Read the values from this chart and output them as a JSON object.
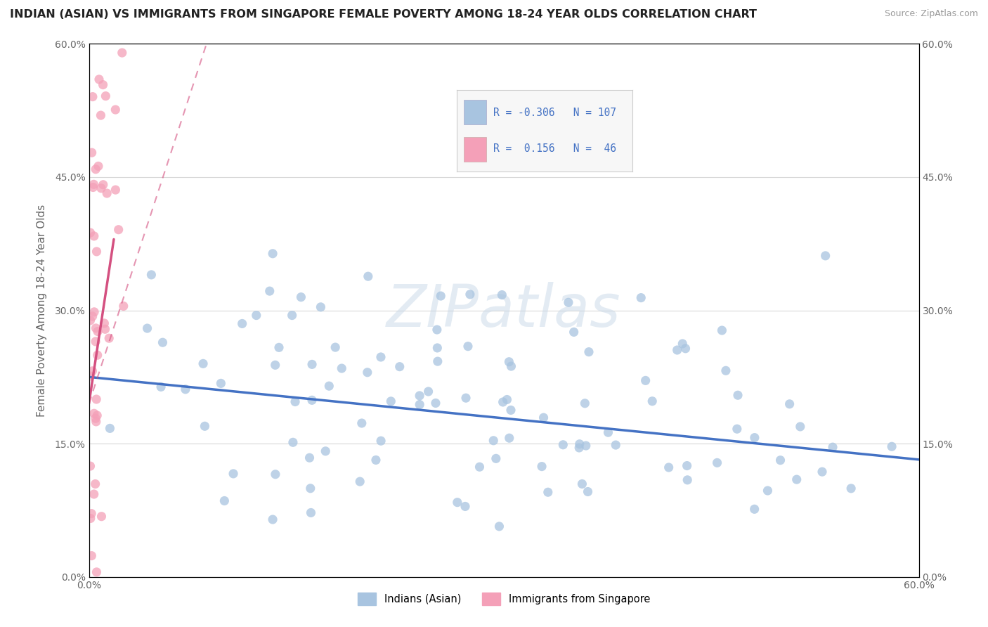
{
  "title": "INDIAN (ASIAN) VS IMMIGRANTS FROM SINGAPORE FEMALE POVERTY AMONG 18-24 YEAR OLDS CORRELATION CHART",
  "source": "Source: ZipAtlas.com",
  "ylabel": "Female Poverty Among 18-24 Year Olds",
  "yticks": [
    0.0,
    0.15,
    0.3,
    0.45,
    0.6
  ],
  "ytick_labels": [
    "0.0%",
    "15.0%",
    "30.0%",
    "45.0%",
    "60.0%"
  ],
  "xticks": [
    0.0,
    0.6
  ],
  "xtick_labels": [
    "0.0%",
    "60.0%"
  ],
  "xlim": [
    0.0,
    0.6
  ],
  "ylim": [
    0.0,
    0.6
  ],
  "watermark": "ZIPatlas",
  "blue_R": -0.306,
  "blue_N": 107,
  "pink_R": 0.156,
  "pink_N": 46,
  "blue_color": "#a8c4e0",
  "pink_color": "#f4a0b8",
  "blue_line_color": "#4472c4",
  "pink_line_color": "#d45080",
  "legend_label_blue": "Indians (Asian)",
  "legend_label_pink": "Immigrants from Singapore",
  "title_color": "#222222",
  "axis_label_color": "#666666",
  "background_color": "#ffffff",
  "grid_color": "#d8d8d8",
  "blue_trend_x0": 0.0,
  "blue_trend_y0": 0.225,
  "blue_trend_x1": 0.6,
  "blue_trend_y1": 0.132,
  "pink_trend_solid_x0": 0.0,
  "pink_trend_solid_y0": 0.195,
  "pink_trend_solid_x1": 0.018,
  "pink_trend_solid_y1": 0.38,
  "pink_trend_dash_x0": 0.0,
  "pink_trend_dash_y0": 0.195,
  "pink_trend_dash_x1": 0.085,
  "pink_trend_dash_y1": 0.6
}
